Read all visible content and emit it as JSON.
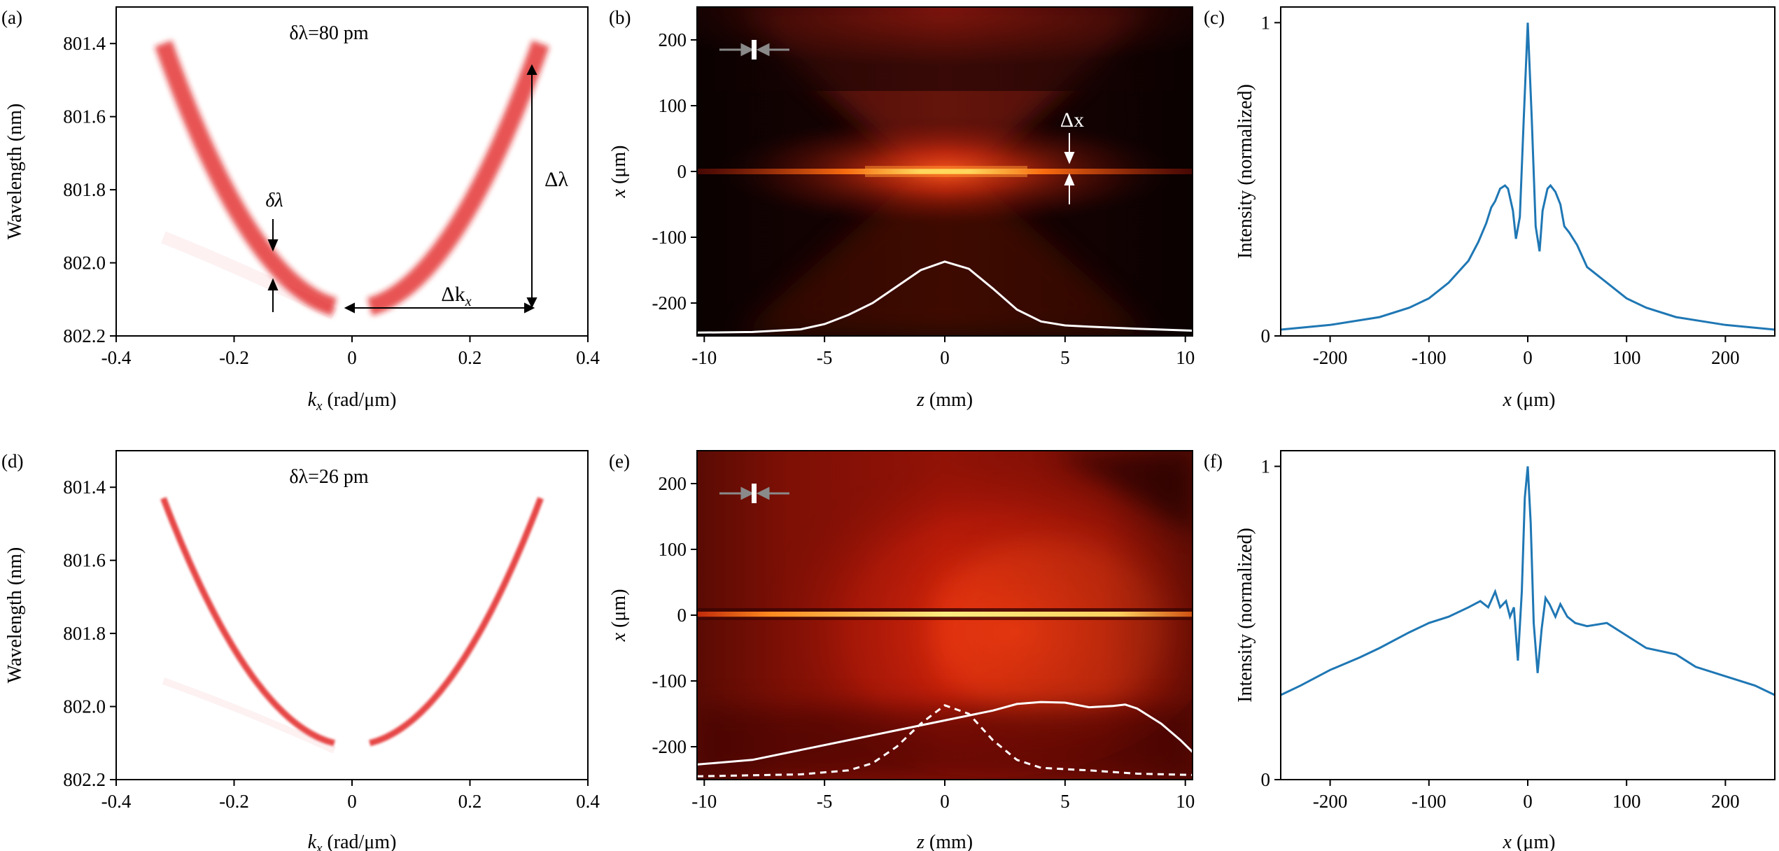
{
  "figure": {
    "colors": {
      "spectrum": "#e0181a",
      "line": "#1f77b4",
      "axis": "#000000",
      "annot": "#ffffff",
      "marker_arrow": "#8a8a8a"
    }
  },
  "chart_data": [
    {
      "id": "a",
      "panel_label": "(a)",
      "type": "scatter",
      "title": "",
      "annotation": "δλ=80 pm",
      "xlabel": "k_x (rad/μm)",
      "ylabel": "Wavelength (nm)",
      "xlim": [
        -0.4,
        0.4
      ],
      "ylim": [
        802.2,
        801.3
      ],
      "xticks": [
        -0.4,
        -0.2,
        0,
        0.2,
        0.4
      ],
      "xtick_labels": [
        "-0.4",
        "-0.2",
        "0",
        "0.2",
        "0.4"
      ],
      "yticks": [
        801.4,
        801.6,
        801.8,
        802.0,
        802.2
      ],
      "ytick_labels": [
        "801.4",
        "801.6",
        "801.8",
        "802.0",
        "802.2"
      ],
      "curve": {
        "k_min": 0.03,
        "k_max": 0.32,
        "lambda_at_kmin": 802.12,
        "lambda_at_kmax": 801.4,
        "linewidth_pm": 80
      },
      "labels": {
        "delta_lambda_small": "δλ",
        "delta_lambda": "Δλ",
        "delta_k": "Δk",
        "delta_k_sub": "x"
      }
    },
    {
      "id": "b",
      "panel_label": "(b)",
      "type": "heatmap",
      "xlabel": "z (mm)",
      "ylabel": "x (μm)",
      "xlim": [
        -10.3,
        10.3
      ],
      "ylim": [
        -250,
        250
      ],
      "xticks": [
        -10,
        -5,
        0,
        5,
        10
      ],
      "xtick_labels": [
        "-10",
        "-5",
        "0",
        "5",
        "10"
      ],
      "yticks": [
        200,
        100,
        0,
        -100,
        -200
      ],
      "ytick_labels": [
        "200",
        "100",
        "0",
        "-100",
        "-200"
      ],
      "annotation_dx": "Δx",
      "overlay_solid": {
        "z": [
          -10.3,
          -8,
          -6,
          -5,
          -4,
          -3,
          -2,
          -1,
          0,
          1,
          2,
          3,
          4,
          5,
          6,
          8,
          10.3
        ],
        "x": [
          -245,
          -244,
          -240,
          -232,
          -218,
          -200,
          -175,
          -150,
          -137,
          -148,
          -178,
          -210,
          -228,
          -234,
          -236,
          -239,
          -242
        ]
      }
    },
    {
      "id": "c",
      "panel_label": "(c)",
      "type": "line",
      "xlabel": "x (μm)",
      "ylabel": "Intensity (normalized)",
      "xlim": [
        -250,
        250
      ],
      "ylim": [
        0,
        1.05
      ],
      "xticks": [
        -200,
        -100,
        0,
        100,
        200
      ],
      "xtick_labels": [
        "-200",
        "-100",
        "0",
        "100",
        "200"
      ],
      "yticks": [
        0,
        1
      ],
      "ytick_labels": [
        "0",
        "1"
      ],
      "x": [
        -250,
        -200,
        -150,
        -120,
        -100,
        -80,
        -60,
        -50,
        -42,
        -37,
        -33,
        -28,
        -23,
        -20,
        -15,
        -12,
        -8,
        -4,
        0,
        4,
        8,
        12,
        15,
        20,
        23,
        28,
        33,
        37,
        42,
        50,
        60,
        80,
        100,
        120,
        150,
        200,
        250
      ],
      "y": [
        0.02,
        0.035,
        0.06,
        0.09,
        0.12,
        0.17,
        0.24,
        0.3,
        0.36,
        0.41,
        0.43,
        0.47,
        0.48,
        0.47,
        0.4,
        0.31,
        0.38,
        0.7,
        1.0,
        0.7,
        0.35,
        0.27,
        0.4,
        0.47,
        0.48,
        0.46,
        0.42,
        0.35,
        0.33,
        0.29,
        0.22,
        0.17,
        0.12,
        0.09,
        0.06,
        0.035,
        0.02
      ]
    },
    {
      "id": "d",
      "panel_label": "(d)",
      "type": "scatter",
      "annotation": "δλ=26 pm",
      "xlabel": "k_x (rad/μm)",
      "ylabel": "Wavelength (nm)",
      "xlim": [
        -0.4,
        0.4
      ],
      "ylim": [
        802.2,
        801.3
      ],
      "xticks": [
        -0.4,
        -0.2,
        0,
        0.2,
        0.4
      ],
      "xtick_labels": [
        "-0.4",
        "-0.2",
        "0",
        "0.2",
        "0.4"
      ],
      "yticks": [
        801.4,
        801.6,
        801.8,
        802.0,
        802.2
      ],
      "ytick_labels": [
        "801.4",
        "801.6",
        "801.8",
        "802.0",
        "802.2"
      ],
      "curve": {
        "k_min": 0.03,
        "k_max": 0.32,
        "lambda_at_kmin": 802.1,
        "lambda_at_kmax": 801.43,
        "linewidth_pm": 26
      }
    },
    {
      "id": "e",
      "panel_label": "(e)",
      "type": "heatmap",
      "xlabel": "z (mm)",
      "ylabel": "x (μm)",
      "xlim": [
        -10.3,
        10.3
      ],
      "ylim": [
        -250,
        250
      ],
      "xticks": [
        -10,
        -5,
        0,
        5,
        10
      ],
      "xtick_labels": [
        "-10",
        "-5",
        "0",
        "5",
        "10"
      ],
      "yticks": [
        200,
        100,
        0,
        -100,
        -200
      ],
      "ytick_labels": [
        "200",
        "100",
        "0",
        "-100",
        "-200"
      ],
      "overlay_solid": {
        "z": [
          -10.3,
          -8,
          -6,
          -4,
          -2,
          0,
          2,
          3,
          4,
          5,
          6,
          7,
          7.5,
          8,
          9,
          9.8,
          10.3
        ],
        "x": [
          -227,
          -220,
          -205,
          -190,
          -175,
          -160,
          -145,
          -135,
          -132,
          -133,
          -140,
          -138,
          -136,
          -142,
          -165,
          -190,
          -208
        ]
      },
      "overlay_dashed": {
        "z": [
          -10.3,
          -6,
          -4,
          -3,
          -2,
          -1,
          0,
          1,
          2,
          3,
          4,
          5,
          6,
          8,
          10.3
        ],
        "x": [
          -245,
          -242,
          -236,
          -225,
          -200,
          -165,
          -137,
          -150,
          -190,
          -220,
          -232,
          -234,
          -236,
          -241,
          -243
        ]
      }
    },
    {
      "id": "f",
      "panel_label": "(f)",
      "type": "line",
      "xlabel": "x (μm)",
      "ylabel": "Intensity (normalized)",
      "xlim": [
        -250,
        250
      ],
      "ylim": [
        0,
        1.05
      ],
      "xticks": [
        -200,
        -100,
        0,
        100,
        200
      ],
      "xtick_labels": [
        "-200",
        "-100",
        "0",
        "100",
        "200"
      ],
      "yticks": [
        0,
        1
      ],
      "ytick_labels": [
        "0",
        "1"
      ],
      "x": [
        -250,
        -230,
        -200,
        -170,
        -150,
        -120,
        -100,
        -80,
        -60,
        -48,
        -40,
        -33,
        -28,
        -22,
        -18,
        -14,
        -10,
        -6,
        -3,
        0,
        3,
        6,
        10,
        14,
        18,
        22,
        28,
        33,
        40,
        48,
        60,
        80,
        100,
        120,
        150,
        170,
        200,
        230,
        250
      ],
      "y": [
        0.27,
        0.3,
        0.35,
        0.39,
        0.42,
        0.47,
        0.5,
        0.52,
        0.55,
        0.57,
        0.55,
        0.6,
        0.55,
        0.57,
        0.52,
        0.55,
        0.38,
        0.6,
        0.9,
        1.0,
        0.82,
        0.5,
        0.34,
        0.48,
        0.58,
        0.56,
        0.52,
        0.56,
        0.52,
        0.5,
        0.49,
        0.5,
        0.46,
        0.42,
        0.4,
        0.36,
        0.33,
        0.3,
        0.27
      ]
    }
  ]
}
